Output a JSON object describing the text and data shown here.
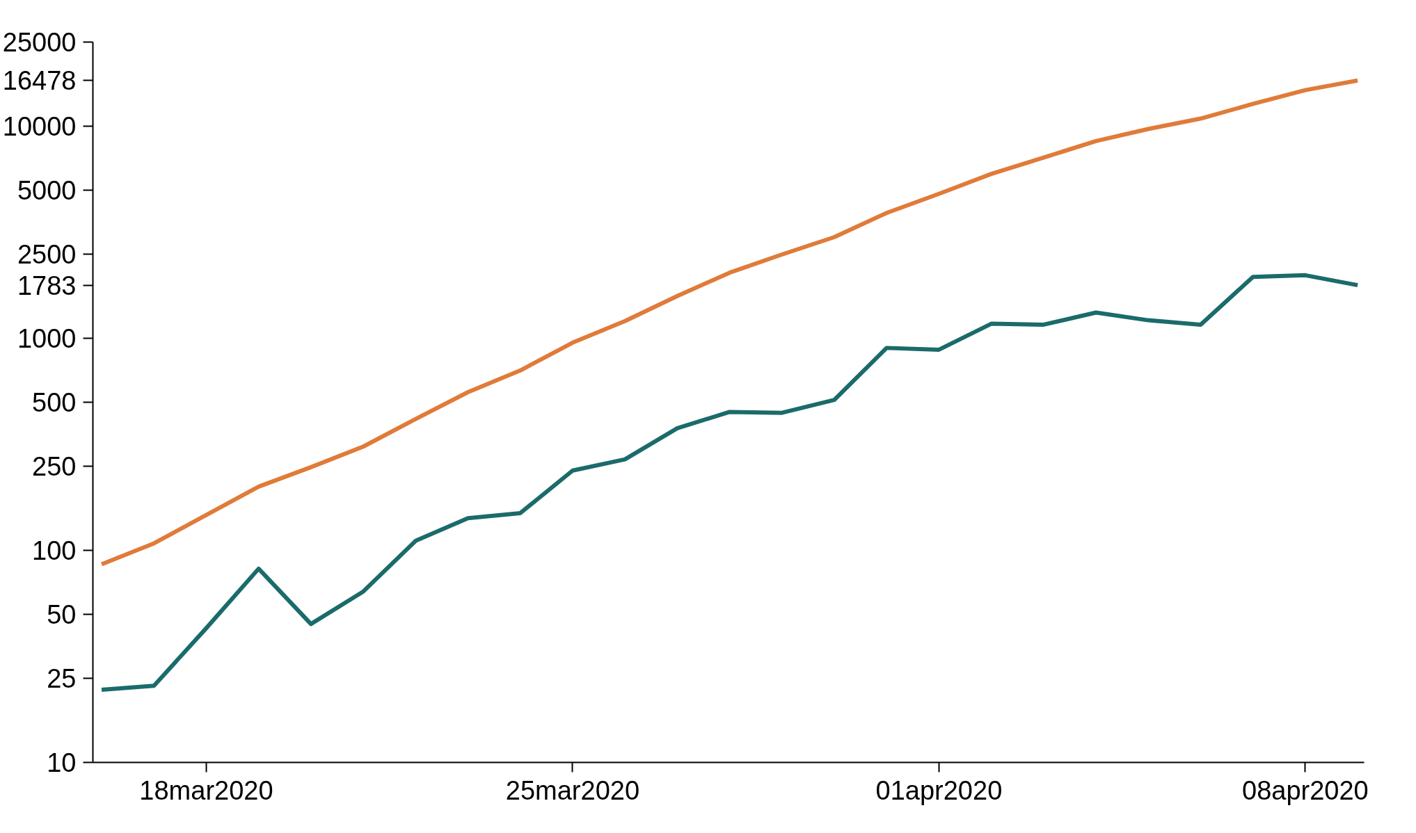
{
  "chart_data": {
    "type": "line",
    "x": [
      "2020-03-16",
      "2020-03-17",
      "2020-03-18",
      "2020-03-19",
      "2020-03-20",
      "2020-03-21",
      "2020-03-22",
      "2020-03-23",
      "2020-03-24",
      "2020-03-25",
      "2020-03-26",
      "2020-03-27",
      "2020-03-28",
      "2020-03-29",
      "2020-03-30",
      "2020-03-31",
      "2020-04-01",
      "2020-04-02",
      "2020-04-03",
      "2020-04-04",
      "2020-04-05",
      "2020-04-06",
      "2020-04-07",
      "2020-04-08",
      "2020-04-09"
    ],
    "series": [
      {
        "color": "#e07b39",
        "values": [
          86,
          108,
          147,
          200,
          247,
          309,
          417,
          558,
          706,
          955,
          1208,
          1585,
          2042,
          2489,
          3006,
          3909,
          4808,
          5970,
          7130,
          8530,
          9730,
          10890,
          12770,
          14830,
          16478
        ]
      },
      {
        "color": "#1b6b6b",
        "values": [
          22,
          23,
          43,
          82,
          45,
          64,
          111,
          142,
          150,
          238,
          269,
          377,
          450,
          446,
          513,
          902,
          885,
          1173,
          1161,
          1325,
          1218,
          1161,
          1950,
          1986,
          1783
        ]
      }
    ],
    "log": true,
    "ylim": [
      10,
      25000
    ],
    "yticks": [
      10,
      25,
      50,
      100,
      250,
      500,
      1000,
      1783,
      2500,
      5000,
      10000,
      16478,
      25000
    ],
    "xlim": [
      "2020-03-15T20:00",
      "2020-04-09T03:00"
    ],
    "xticks": [
      {
        "value": "2020-03-18",
        "label": "18mar2020"
      },
      {
        "value": "2020-03-25",
        "label": "25mar2020"
      },
      {
        "value": "2020-04-01",
        "label": "01apr2020"
      },
      {
        "value": "2020-04-08",
        "label": "08apr2020"
      }
    ],
    "grid": false,
    "marker": "none",
    "line_style": "solid"
  }
}
